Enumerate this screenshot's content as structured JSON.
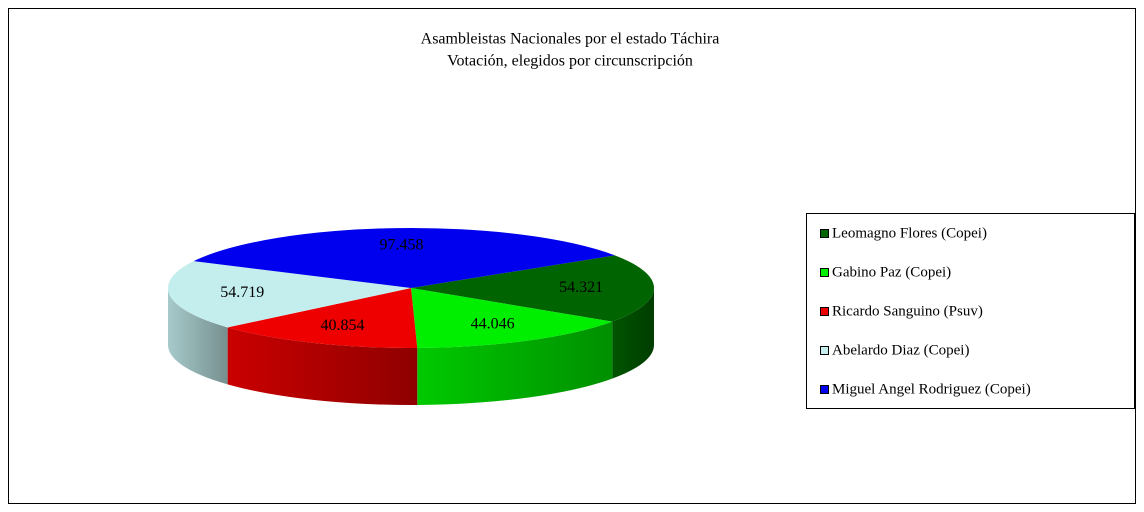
{
  "chart_data": {
    "type": "pie",
    "title": "Asambleistas Nacionales por el  estado Táchira",
    "subtitle": "Votación, elegidos por circunscripción",
    "categories": [
      "Leomagno Flores (Copei)",
      "Gabino Paz (Copei)",
      "Ricardo Sanguino (Psuv)",
      "Abelardo Diaz (Copei)",
      "Miguel Angel Rodriguez (Copei)"
    ],
    "values": [
      54.321,
      44.046,
      40.854,
      54.719,
      97.458
    ],
    "colors": [
      "#006400",
      "#00ee00",
      "#ee0000",
      "#c4eeee",
      "#0000ee"
    ],
    "legend": "right"
  }
}
